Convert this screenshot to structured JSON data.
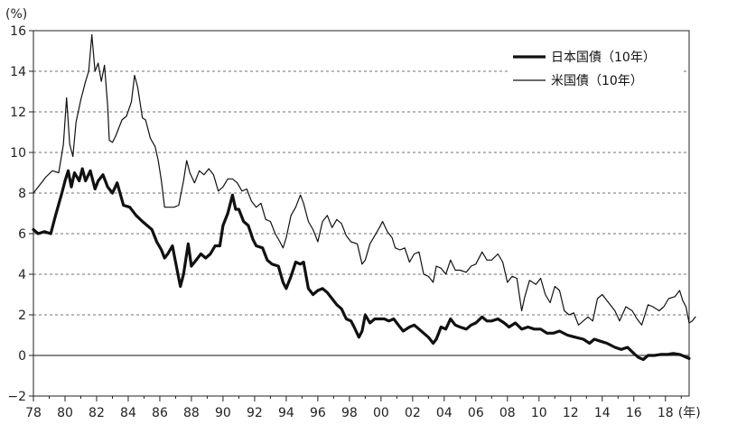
{
  "chart_data": {
    "type": "line",
    "y_unit_label": "(%)",
    "x_unit_label": "(年)",
    "ylim": [
      -2,
      16
    ],
    "y_ticks": [
      -2,
      0,
      2,
      4,
      6,
      8,
      10,
      12,
      14,
      16
    ],
    "y_tick_labels": [
      "−2",
      "0",
      "2",
      "4",
      "6",
      "8",
      "10",
      "12",
      "14",
      "16"
    ],
    "xlim": [
      1978,
      2019.5
    ],
    "x_ticks": [
      1978,
      1980,
      1982,
      1984,
      1986,
      1988,
      1990,
      1992,
      1994,
      1996,
      1998,
      2000,
      2002,
      2004,
      2006,
      2008,
      2010,
      2012,
      2014,
      2016,
      2018
    ],
    "x_tick_labels": [
      "78",
      "80",
      "82",
      "84",
      "86",
      "88",
      "90",
      "92",
      "94",
      "96",
      "98",
      "00",
      "02",
      "04",
      "06",
      "08",
      "10",
      "12",
      "14",
      "16",
      "18"
    ],
    "grid": "horizontal-dashed",
    "legend_position": "top-right",
    "series": [
      {
        "name": "日本国債（10年）",
        "style": "thick",
        "color": "#111111",
        "points": [
          [
            1978.0,
            6.2
          ],
          [
            1978.3,
            6.0
          ],
          [
            1978.7,
            6.1
          ],
          [
            1979.1,
            6.0
          ],
          [
            1979.4,
            6.9
          ],
          [
            1979.8,
            8.0
          ],
          [
            1980.0,
            8.6
          ],
          [
            1980.2,
            9.1
          ],
          [
            1980.4,
            8.3
          ],
          [
            1980.6,
            9.0
          ],
          [
            1980.9,
            8.6
          ],
          [
            1981.1,
            9.2
          ],
          [
            1981.3,
            8.6
          ],
          [
            1981.6,
            9.1
          ],
          [
            1981.9,
            8.2
          ],
          [
            1982.1,
            8.6
          ],
          [
            1982.4,
            8.9
          ],
          [
            1982.7,
            8.3
          ],
          [
            1983.0,
            8.0
          ],
          [
            1983.3,
            8.5
          ],
          [
            1983.7,
            7.4
          ],
          [
            1984.1,
            7.3
          ],
          [
            1984.5,
            6.9
          ],
          [
            1984.9,
            6.6
          ],
          [
            1985.2,
            6.4
          ],
          [
            1985.5,
            6.2
          ],
          [
            1985.8,
            5.6
          ],
          [
            1986.1,
            5.2
          ],
          [
            1986.3,
            4.8
          ],
          [
            1986.5,
            5.0
          ],
          [
            1986.8,
            5.4
          ],
          [
            1987.0,
            4.6
          ],
          [
            1987.3,
            3.4
          ],
          [
            1987.5,
            4.0
          ],
          [
            1987.8,
            5.5
          ],
          [
            1988.0,
            4.4
          ],
          [
            1988.3,
            4.7
          ],
          [
            1988.6,
            5.0
          ],
          [
            1988.9,
            4.8
          ],
          [
            1989.2,
            5.0
          ],
          [
            1989.5,
            5.4
          ],
          [
            1989.8,
            5.4
          ],
          [
            1990.0,
            6.4
          ],
          [
            1990.3,
            7.0
          ],
          [
            1990.6,
            7.9
          ],
          [
            1990.8,
            7.2
          ],
          [
            1991.0,
            7.2
          ],
          [
            1991.3,
            6.6
          ],
          [
            1991.6,
            6.4
          ],
          [
            1991.9,
            5.7
          ],
          [
            1992.1,
            5.4
          ],
          [
            1992.5,
            5.3
          ],
          [
            1992.8,
            4.7
          ],
          [
            1993.1,
            4.5
          ],
          [
            1993.5,
            4.4
          ],
          [
            1993.8,
            3.6
          ],
          [
            1994.0,
            3.3
          ],
          [
            1994.3,
            3.9
          ],
          [
            1994.6,
            4.6
          ],
          [
            1994.9,
            4.5
          ],
          [
            1995.1,
            4.6
          ],
          [
            1995.4,
            3.3
          ],
          [
            1995.7,
            3.0
          ],
          [
            1996.0,
            3.2
          ],
          [
            1996.3,
            3.3
          ],
          [
            1996.6,
            3.1
          ],
          [
            1996.9,
            2.8
          ],
          [
            1997.2,
            2.5
          ],
          [
            1997.5,
            2.3
          ],
          [
            1997.8,
            1.8
          ],
          [
            1998.1,
            1.7
          ],
          [
            1998.3,
            1.4
          ],
          [
            1998.6,
            0.9
          ],
          [
            1998.8,
            1.2
          ],
          [
            1999.0,
            2.0
          ],
          [
            1999.3,
            1.6
          ],
          [
            1999.6,
            1.8
          ],
          [
            1999.9,
            1.8
          ],
          [
            2000.2,
            1.8
          ],
          [
            2000.5,
            1.7
          ],
          [
            2000.8,
            1.8
          ],
          [
            2001.1,
            1.5
          ],
          [
            2001.4,
            1.2
          ],
          [
            2001.8,
            1.4
          ],
          [
            2002.1,
            1.5
          ],
          [
            2002.4,
            1.3
          ],
          [
            2002.7,
            1.1
          ],
          [
            2003.0,
            0.9
          ],
          [
            2003.3,
            0.6
          ],
          [
            2003.5,
            0.8
          ],
          [
            2003.8,
            1.4
          ],
          [
            2004.1,
            1.3
          ],
          [
            2004.4,
            1.8
          ],
          [
            2004.7,
            1.5
          ],
          [
            2005.0,
            1.4
          ],
          [
            2005.4,
            1.3
          ],
          [
            2005.7,
            1.5
          ],
          [
            2006.0,
            1.6
          ],
          [
            2006.4,
            1.9
          ],
          [
            2006.7,
            1.7
          ],
          [
            2007.0,
            1.7
          ],
          [
            2007.4,
            1.8
          ],
          [
            2007.8,
            1.6
          ],
          [
            2008.1,
            1.4
          ],
          [
            2008.5,
            1.6
          ],
          [
            2008.9,
            1.3
          ],
          [
            2009.3,
            1.4
          ],
          [
            2009.7,
            1.3
          ],
          [
            2010.1,
            1.3
          ],
          [
            2010.5,
            1.1
          ],
          [
            2010.9,
            1.1
          ],
          [
            2011.3,
            1.2
          ],
          [
            2011.8,
            1.0
          ],
          [
            2012.3,
            0.9
          ],
          [
            2012.8,
            0.8
          ],
          [
            2013.2,
            0.6
          ],
          [
            2013.5,
            0.8
          ],
          [
            2013.9,
            0.7
          ],
          [
            2014.3,
            0.6
          ],
          [
            2014.8,
            0.4
          ],
          [
            2015.2,
            0.3
          ],
          [
            2015.6,
            0.4
          ],
          [
            2016.0,
            0.1
          ],
          [
            2016.3,
            -0.1
          ],
          [
            2016.6,
            -0.2
          ],
          [
            2016.9,
            0.0
          ],
          [
            2017.3,
            0.0
          ],
          [
            2017.7,
            0.05
          ],
          [
            2018.1,
            0.05
          ],
          [
            2018.5,
            0.1
          ],
          [
            2018.9,
            0.05
          ],
          [
            2019.2,
            -0.05
          ],
          [
            2019.5,
            -0.15
          ]
        ]
      },
      {
        "name": "米国債（10年）",
        "style": "thin",
        "color": "#111111",
        "points": [
          [
            1978.0,
            8.0
          ],
          [
            1978.4,
            8.4
          ],
          [
            1978.8,
            8.8
          ],
          [
            1979.2,
            9.1
          ],
          [
            1979.6,
            9.0
          ],
          [
            1979.9,
            10.4
          ],
          [
            1980.1,
            12.7
          ],
          [
            1980.3,
            10.4
          ],
          [
            1980.5,
            9.8
          ],
          [
            1980.7,
            11.5
          ],
          [
            1981.0,
            12.6
          ],
          [
            1981.3,
            13.5
          ],
          [
            1981.5,
            14.0
          ],
          [
            1981.7,
            15.8
          ],
          [
            1981.9,
            14.0
          ],
          [
            1982.1,
            14.4
          ],
          [
            1982.3,
            13.5
          ],
          [
            1982.5,
            14.3
          ],
          [
            1982.7,
            12.3
          ],
          [
            1982.8,
            10.6
          ],
          [
            1983.0,
            10.5
          ],
          [
            1983.2,
            10.8
          ],
          [
            1983.6,
            11.6
          ],
          [
            1983.9,
            11.8
          ],
          [
            1984.2,
            12.5
          ],
          [
            1984.4,
            13.8
          ],
          [
            1984.6,
            13.2
          ],
          [
            1984.9,
            11.7
          ],
          [
            1985.1,
            11.6
          ],
          [
            1985.4,
            10.7
          ],
          [
            1985.7,
            10.3
          ],
          [
            1985.9,
            9.6
          ],
          [
            1986.1,
            8.6
          ],
          [
            1986.3,
            7.3
          ],
          [
            1986.6,
            7.3
          ],
          [
            1986.9,
            7.3
          ],
          [
            1987.2,
            7.4
          ],
          [
            1987.5,
            8.6
          ],
          [
            1987.7,
            9.6
          ],
          [
            1987.9,
            9.0
          ],
          [
            1988.2,
            8.5
          ],
          [
            1988.5,
            9.1
          ],
          [
            1988.8,
            8.9
          ],
          [
            1989.1,
            9.2
          ],
          [
            1989.4,
            8.9
          ],
          [
            1989.7,
            8.1
          ],
          [
            1990.0,
            8.3
          ],
          [
            1990.3,
            8.7
          ],
          [
            1990.6,
            8.7
          ],
          [
            1990.9,
            8.5
          ],
          [
            1991.2,
            8.1
          ],
          [
            1991.5,
            8.2
          ],
          [
            1991.8,
            7.6
          ],
          [
            1992.1,
            7.3
          ],
          [
            1992.4,
            7.5
          ],
          [
            1992.7,
            6.7
          ],
          [
            1993.0,
            6.6
          ],
          [
            1993.3,
            6.0
          ],
          [
            1993.6,
            5.6
          ],
          [
            1993.8,
            5.3
          ],
          [
            1994.0,
            5.8
          ],
          [
            1994.3,
            6.9
          ],
          [
            1994.6,
            7.3
          ],
          [
            1994.9,
            7.9
          ],
          [
            1995.1,
            7.5
          ],
          [
            1995.4,
            6.6
          ],
          [
            1995.7,
            6.2
          ],
          [
            1996.0,
            5.6
          ],
          [
            1996.3,
            6.6
          ],
          [
            1996.6,
            6.9
          ],
          [
            1996.9,
            6.3
          ],
          [
            1997.2,
            6.7
          ],
          [
            1997.5,
            6.5
          ],
          [
            1997.8,
            5.9
          ],
          [
            1998.1,
            5.6
          ],
          [
            1998.5,
            5.5
          ],
          [
            1998.8,
            4.5
          ],
          [
            1999.0,
            4.7
          ],
          [
            1999.3,
            5.5
          ],
          [
            1999.6,
            5.9
          ],
          [
            1999.9,
            6.3
          ],
          [
            2000.1,
            6.6
          ],
          [
            2000.4,
            6.1
          ],
          [
            2000.7,
            5.8
          ],
          [
            2000.9,
            5.3
          ],
          [
            2001.2,
            5.2
          ],
          [
            2001.5,
            5.3
          ],
          [
            2001.8,
            4.6
          ],
          [
            2002.1,
            5.0
          ],
          [
            2002.4,
            5.1
          ],
          [
            2002.7,
            4.0
          ],
          [
            2003.0,
            3.9
          ],
          [
            2003.3,
            3.6
          ],
          [
            2003.5,
            4.4
          ],
          [
            2003.8,
            4.3
          ],
          [
            2004.1,
            4.0
          ],
          [
            2004.4,
            4.7
          ],
          [
            2004.7,
            4.2
          ],
          [
            2005.0,
            4.2
          ],
          [
            2005.4,
            4.1
          ],
          [
            2005.7,
            4.4
          ],
          [
            2006.0,
            4.5
          ],
          [
            2006.4,
            5.1
          ],
          [
            2006.7,
            4.7
          ],
          [
            2007.0,
            4.7
          ],
          [
            2007.4,
            5.0
          ],
          [
            2007.7,
            4.6
          ],
          [
            2008.0,
            3.6
          ],
          [
            2008.3,
            3.9
          ],
          [
            2008.6,
            3.8
          ],
          [
            2008.9,
            2.2
          ],
          [
            2009.1,
            2.9
          ],
          [
            2009.4,
            3.7
          ],
          [
            2009.8,
            3.5
          ],
          [
            2010.1,
            3.8
          ],
          [
            2010.4,
            3.0
          ],
          [
            2010.7,
            2.6
          ],
          [
            2011.0,
            3.4
          ],
          [
            2011.3,
            3.2
          ],
          [
            2011.6,
            2.2
          ],
          [
            2011.9,
            2.0
          ],
          [
            2012.2,
            2.1
          ],
          [
            2012.5,
            1.5
          ],
          [
            2012.8,
            1.7
          ],
          [
            2013.1,
            1.9
          ],
          [
            2013.4,
            1.7
          ],
          [
            2013.7,
            2.8
          ],
          [
            2014.0,
            3.0
          ],
          [
            2014.4,
            2.6
          ],
          [
            2014.8,
            2.2
          ],
          [
            2015.1,
            1.7
          ],
          [
            2015.5,
            2.4
          ],
          [
            2015.9,
            2.2
          ],
          [
            2016.2,
            1.8
          ],
          [
            2016.5,
            1.5
          ],
          [
            2016.9,
            2.5
          ],
          [
            2017.2,
            2.4
          ],
          [
            2017.6,
            2.2
          ],
          [
            2017.9,
            2.4
          ],
          [
            2018.2,
            2.8
          ],
          [
            2018.6,
            2.9
          ],
          [
            2018.9,
            3.2
          ],
          [
            2019.1,
            2.7
          ],
          [
            2019.3,
            2.4
          ],
          [
            2019.5,
            1.6
          ],
          [
            2019.7,
            1.7
          ],
          [
            2019.9,
            1.9
          ]
        ]
      }
    ]
  }
}
